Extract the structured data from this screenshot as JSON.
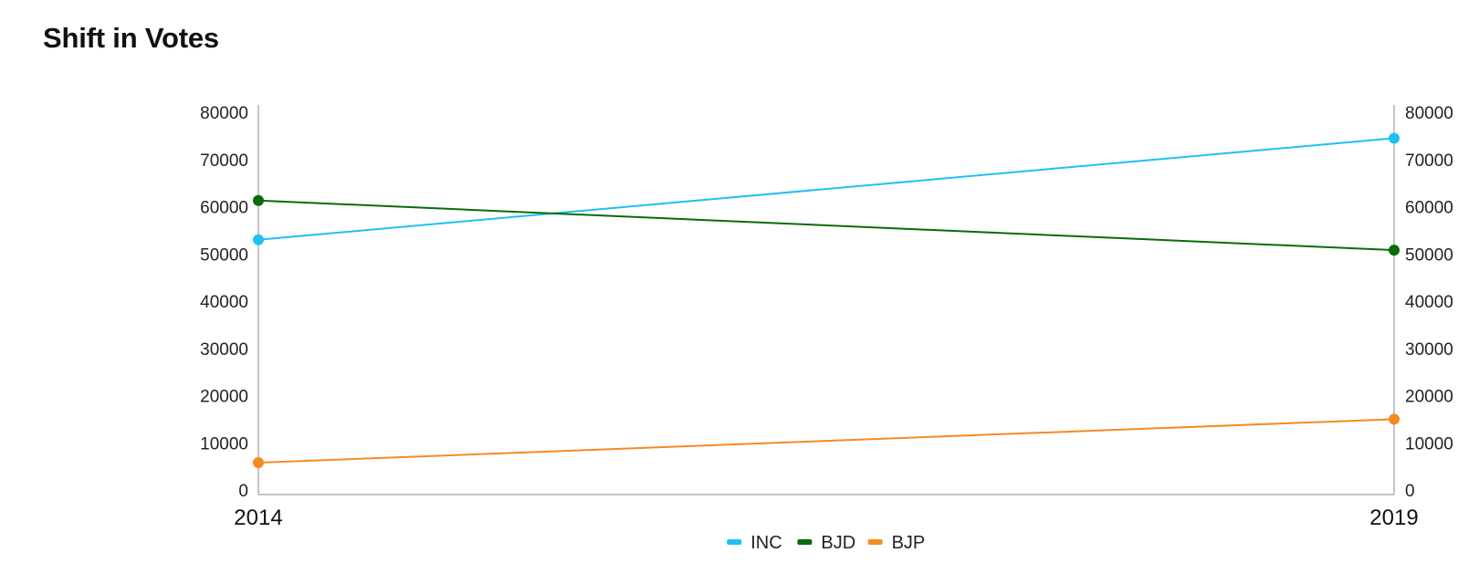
{
  "page": {
    "title": "Shift in Votes"
  },
  "chart_data": {
    "type": "line",
    "title": "Shift in Votes",
    "xlabel": "",
    "ylabel": "",
    "categories": [
      "2014",
      "2019"
    ],
    "series": [
      {
        "name": "INC",
        "color": "#1ec0f2",
        "values": [
          53000,
          74500
        ]
      },
      {
        "name": "BJD",
        "color": "#0b6b0b",
        "values": [
          61300,
          50800
        ]
      },
      {
        "name": "BJP",
        "color": "#f48b22",
        "values": [
          5800,
          15000
        ]
      }
    ],
    "ylim": [
      0,
      80000
    ],
    "yticks": [
      0,
      10000,
      20000,
      30000,
      40000,
      50000,
      60000,
      70000,
      80000
    ],
    "secondary_y_axis": true,
    "grid": false,
    "legend": "bottom-center"
  }
}
